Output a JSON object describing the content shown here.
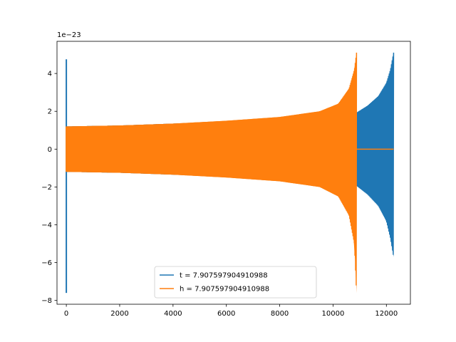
{
  "chart_data": {
    "type": "line",
    "title": "",
    "xlabel": "",
    "ylabel": "",
    "offset_label": "1e−23",
    "xlim": [
      -350,
      12900
    ],
    "ylim": [
      -8.2,
      5.7
    ],
    "xticks": [
      0,
      2000,
      4000,
      6000,
      8000,
      10000,
      12000
    ],
    "yticks": [
      -8,
      -6,
      -4,
      -2,
      0,
      2,
      4
    ],
    "grid": false,
    "legend_position": "lower center",
    "series": [
      {
        "name": "t = 7.907597904910988",
        "color": "#1f77b4",
        "spike_start": {
          "x": 0,
          "min": -7.6,
          "max": 4.75
        },
        "envelope": [
          [
            0,
            1.2,
            -1.2
          ],
          [
            2000,
            1.25,
            -1.25
          ],
          [
            4000,
            1.35,
            -1.35
          ],
          [
            6000,
            1.45,
            -1.45
          ],
          [
            8000,
            1.65,
            -1.65
          ],
          [
            9500,
            1.8,
            -1.8
          ],
          [
            10850,
            1.9,
            -1.9
          ],
          [
            11300,
            2.3,
            -2.4
          ],
          [
            11700,
            2.8,
            -3.0
          ],
          [
            12000,
            3.5,
            -3.8
          ],
          [
            12150,
            4.2,
            -4.7
          ],
          [
            12270,
            5.1,
            -5.7
          ]
        ]
      },
      {
        "name": "h = 7.907597904910988",
        "color": "#ff7f0e",
        "spike_start": {
          "x": 0,
          "min": -1.2,
          "max": 1.2
        },
        "envelope": [
          [
            0,
            1.2,
            -1.2
          ],
          [
            2000,
            1.25,
            -1.25
          ],
          [
            4000,
            1.35,
            -1.35
          ],
          [
            6000,
            1.5,
            -1.5
          ],
          [
            8000,
            1.7,
            -1.7
          ],
          [
            9500,
            2.0,
            -2.0
          ],
          [
            10200,
            2.4,
            -2.5
          ],
          [
            10600,
            3.2,
            -3.5
          ],
          [
            10800,
            4.2,
            -5.0
          ],
          [
            10880,
            5.1,
            -7.6
          ]
        ],
        "tail": {
          "x_start": 10880,
          "x_end": 12270,
          "value": 0
        }
      }
    ]
  }
}
